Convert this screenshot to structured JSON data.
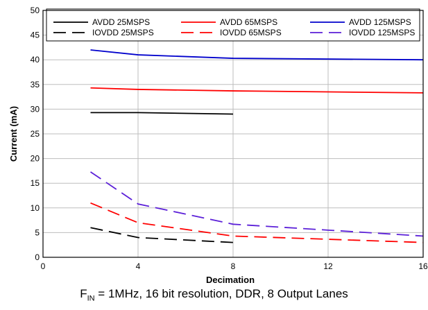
{
  "chart_data": {
    "type": "line",
    "title": "",
    "xlabel": "Decimation",
    "ylabel": "Current (mA)",
    "xlim": [
      0,
      16
    ],
    "ylim": [
      0,
      50
    ],
    "xticks": [
      0,
      4,
      8,
      12,
      16
    ],
    "yticks": [
      0,
      5,
      10,
      15,
      20,
      25,
      30,
      35,
      40,
      45,
      50
    ],
    "grid": true,
    "legend_placement": "top",
    "series": [
      {
        "name": "AVDD 25MSPS",
        "color": "#000000",
        "dash": "solid",
        "x": [
          2,
          4,
          8
        ],
        "y": [
          29.3,
          29.3,
          29.0
        ]
      },
      {
        "name": "AVDD 65MSPS",
        "color": "#ff0000",
        "dash": "solid",
        "x": [
          2,
          4,
          8,
          16
        ],
        "y": [
          34.3,
          34.0,
          33.7,
          33.3
        ]
      },
      {
        "name": "AVDD 125MSPS",
        "color": "#0000cc",
        "dash": "solid",
        "x": [
          2,
          4,
          8,
          16
        ],
        "y": [
          42.0,
          41.0,
          40.3,
          40.0
        ]
      },
      {
        "name": "IOVDD 25MSPS",
        "color": "#000000",
        "dash": "dashed",
        "x": [
          2,
          4,
          8
        ],
        "y": [
          6.0,
          4.0,
          3.0
        ]
      },
      {
        "name": "IOVDD 65MSPS",
        "color": "#ff0000",
        "dash": "dashed",
        "x": [
          2,
          4,
          8,
          16
        ],
        "y": [
          11.0,
          7.0,
          4.3,
          3.0
        ]
      },
      {
        "name": "IOVDD 125MSPS",
        "color": "#5b1fd8",
        "dash": "dashed",
        "x": [
          2,
          4,
          8,
          12,
          16
        ],
        "y": [
          17.3,
          10.8,
          6.7,
          5.5,
          4.3
        ]
      }
    ]
  },
  "caption": {
    "prefix": "F",
    "subscript": "IN",
    "text": " = 1MHz, 16 bit resolution, DDR, 8 Output Lanes"
  }
}
